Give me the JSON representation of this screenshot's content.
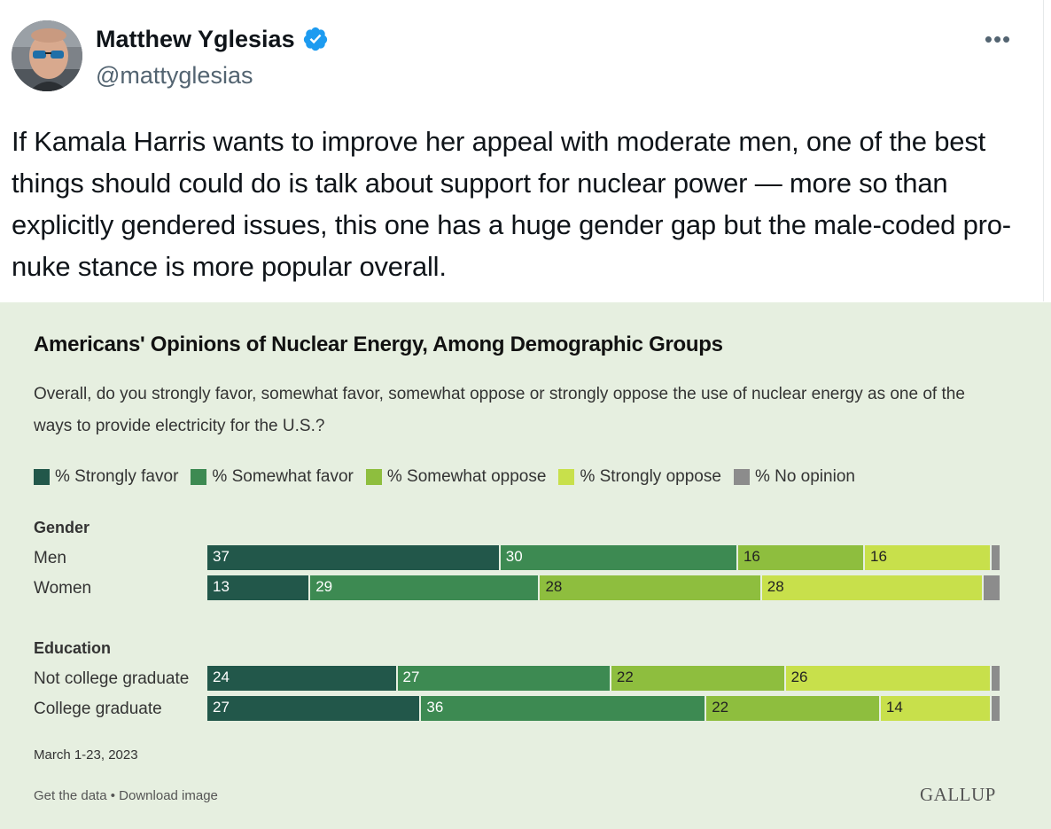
{
  "tweet": {
    "display_name": "Matthew Yglesias",
    "handle": "@mattyglesias",
    "more_label": "•••",
    "text": "If Kamala Harris wants to improve her appeal with moderate men, one of the best things should could do is talk about support for nuclear power — more so than explicitly gendered issues, this one has a huge gender gap but the male-coded pro-nuke stance is more popular overall."
  },
  "colors": {
    "strongly_favor": "#22574a",
    "somewhat_favor": "#3d8a52",
    "somewhat_oppose": "#8ebe3e",
    "strongly_oppose": "#c8e04b",
    "no_opinion": "#8c8c8c",
    "verified": "#1d9bf0",
    "media_bg": "#e6efe0"
  },
  "chart_data": {
    "type": "bar",
    "orientation": "horizontal",
    "stacked": true,
    "title": "Americans' Opinions of Nuclear Energy, Among Demographic Groups",
    "subtitle": "Overall, do you strongly favor, somewhat favor, somewhat oppose or strongly oppose the use of nuclear energy as one of the ways to provide electricity for the U.S.?",
    "legend_position": "top",
    "series": [
      {
        "name": "% Strongly favor",
        "color": "#22574a"
      },
      {
        "name": "% Somewhat favor",
        "color": "#3d8a52"
      },
      {
        "name": "% Somewhat oppose",
        "color": "#8ebe3e"
      },
      {
        "name": "% Strongly oppose",
        "color": "#c8e04b"
      },
      {
        "name": "% No opinion",
        "color": "#8c8c8c"
      }
    ],
    "groups": [
      {
        "name": "Gender",
        "rows": [
          {
            "label": "Men",
            "values": [
              37,
              30,
              16,
              16,
              1
            ]
          },
          {
            "label": "Women",
            "values": [
              13,
              29,
              28,
              28,
              2
            ]
          }
        ]
      },
      {
        "name": "Education",
        "rows": [
          {
            "label": "Not college graduate",
            "values": [
              24,
              27,
              22,
              26,
              1
            ]
          },
          {
            "label": "College graduate",
            "values": [
              27,
              36,
              22,
              14,
              1
            ]
          }
        ]
      }
    ],
    "date": "March 1-23, 2023",
    "footer": {
      "get_data": "Get the data",
      "separator": "•",
      "download": "Download image"
    },
    "brand": "GALLUP"
  }
}
